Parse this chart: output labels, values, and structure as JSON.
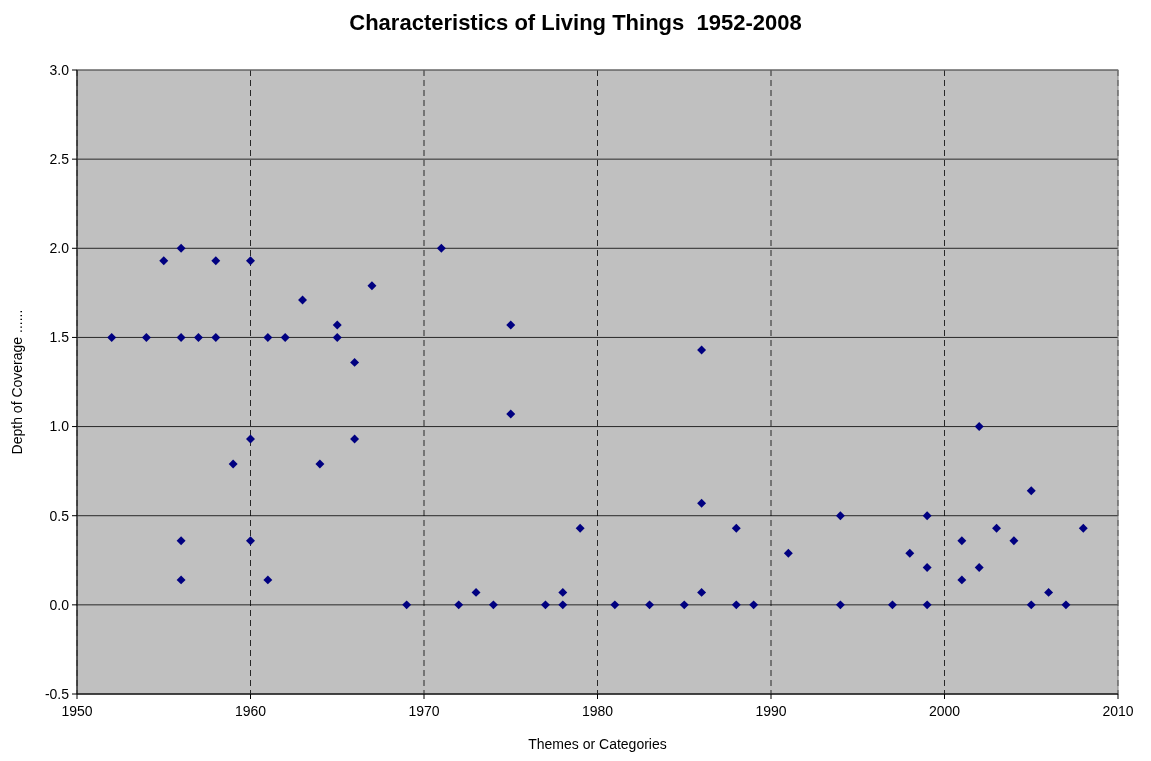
{
  "chart_data": {
    "type": "scatter",
    "title": "Characteristics of Living Things  1952-2008",
    "xlabel": "Themes or Categories",
    "ylabel": "Depth of Coverage ......",
    "xlim": [
      1950,
      2010
    ],
    "xticks": [
      1950,
      1960,
      1970,
      1980,
      1990,
      2000,
      2010
    ],
    "ylim": [
      -0.5,
      3
    ],
    "yticks": [
      {
        "value": -0.5,
        "label": "-0.5"
      },
      {
        "value": 0,
        "label": "0.0"
      },
      {
        "value": 0.5,
        "label": "0.5"
      },
      {
        "value": 1,
        "label": "1.0"
      },
      {
        "value": 1.5,
        "label": "1.5"
      },
      {
        "value": 2,
        "label": "2.0"
      },
      {
        "value": 2.5,
        "label": "2.5"
      },
      {
        "value": 3,
        "label": "3.0"
      }
    ],
    "grid": true,
    "marker": "diamond",
    "series": [
      {
        "color": "#000080",
        "x": [
          1952,
          1954,
          1955,
          1956,
          1956,
          1956,
          1956,
          1957,
          1958,
          1958,
          1959,
          1960,
          1960,
          1960,
          1961,
          1961,
          1962,
          1963,
          1964,
          1965,
          1965,
          1966,
          1966,
          1967,
          1969,
          1971,
          1972,
          1973,
          1974,
          1975,
          1975,
          1977,
          1978,
          1978,
          1979,
          1981,
          1983,
          1985,
          1986,
          1986,
          1986,
          1988,
          1988,
          1989,
          1991,
          1994,
          1994,
          1997,
          1998,
          1999,
          1999,
          1999,
          2001,
          2001,
          2002,
          2002,
          2003,
          2004,
          2005,
          2005,
          2006,
          2007,
          2008
        ],
        "values": [
          1.5,
          1.5,
          1.93,
          2.0,
          1.5,
          0.36,
          0.14,
          1.5,
          1.93,
          1.5,
          0.79,
          1.93,
          0.93,
          0.36,
          1.5,
          0.14,
          1.5,
          1.71,
          0.79,
          1.57,
          1.5,
          1.36,
          0.93,
          1.79,
          0,
          2.0,
          0,
          0.07,
          0,
          1.57,
          1.07,
          0,
          0.07,
          0,
          0.43,
          0,
          0,
          0,
          1.43,
          0.57,
          0.07,
          0.43,
          0,
          0,
          0.29,
          0.5,
          0,
          0,
          0.29,
          0.5,
          0.21,
          0,
          0.36,
          0.14,
          1.0,
          0.21,
          0.43,
          0.36,
          0.64,
          0,
          0.07,
          0,
          0.43
        ]
      }
    ]
  }
}
